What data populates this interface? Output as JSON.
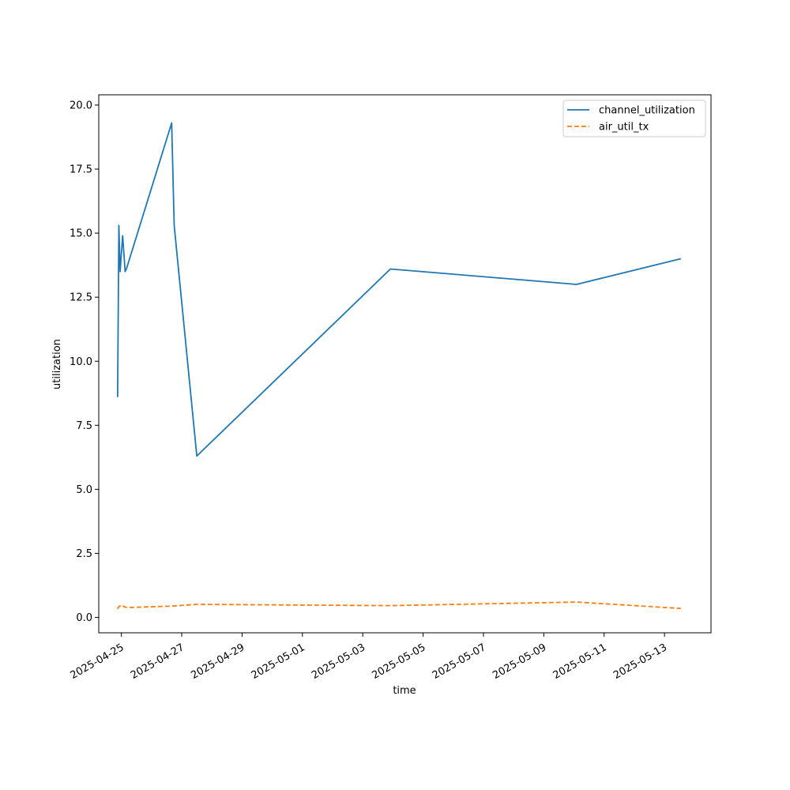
{
  "chart_data": {
    "type": "line",
    "xlabel": "time",
    "ylabel": "utilization",
    "x_axis_type": "date",
    "xlim": [
      "2025-04-24T06:00",
      "2025-05-14T13:00"
    ],
    "ylim": [
      -0.6,
      20.4
    ],
    "y_ticks": [
      0.0,
      2.5,
      5.0,
      7.5,
      10.0,
      12.5,
      15.0,
      17.5,
      20.0
    ],
    "y_tick_labels": [
      "0.0",
      "2.5",
      "5.0",
      "7.5",
      "10.0",
      "12.5",
      "15.0",
      "17.5",
      "20.0"
    ],
    "x_ticks": [
      "2025-04-25",
      "2025-04-27",
      "2025-04-29",
      "2025-05-01",
      "2025-05-03",
      "2025-05-05",
      "2025-05-07",
      "2025-05-09",
      "2025-05-11",
      "2025-05-13"
    ],
    "grid": false,
    "legend_position": "top-right",
    "series": [
      {
        "name": "channel_utilization",
        "color": "#1f77b4",
        "dash": "solid",
        "points": [
          [
            "2025-04-24T21:00",
            8.6
          ],
          [
            "2025-04-24T22:00",
            15.3
          ],
          [
            "2025-04-24T23:00",
            13.5
          ],
          [
            "2025-04-25T01:00",
            14.9
          ],
          [
            "2025-04-25T03:00",
            13.5
          ],
          [
            "2025-04-25T04:00",
            13.6
          ],
          [
            "2025-04-26T16:00",
            19.3
          ],
          [
            "2025-04-26T18:00",
            15.3
          ],
          [
            "2025-04-27T12:00",
            6.3
          ],
          [
            "2025-05-03T22:00",
            13.6
          ],
          [
            "2025-05-10T02:00",
            13.0
          ],
          [
            "2025-05-13T13:00",
            14.0
          ]
        ]
      },
      {
        "name": "air_util_tx",
        "color": "#ff7f0e",
        "dash": "dashed",
        "points": [
          [
            "2025-04-24T21:00",
            0.33
          ],
          [
            "2025-04-24T22:00",
            0.42
          ],
          [
            "2025-04-25T00:00",
            0.48
          ],
          [
            "2025-04-25T03:00",
            0.4
          ],
          [
            "2025-04-25T06:00",
            0.39
          ],
          [
            "2025-04-26T16:00",
            0.44
          ],
          [
            "2025-04-27T12:00",
            0.51
          ],
          [
            "2025-05-03T22:00",
            0.46
          ],
          [
            "2025-05-10T02:00",
            0.6
          ],
          [
            "2025-05-13T13:00",
            0.35
          ]
        ]
      }
    ]
  }
}
